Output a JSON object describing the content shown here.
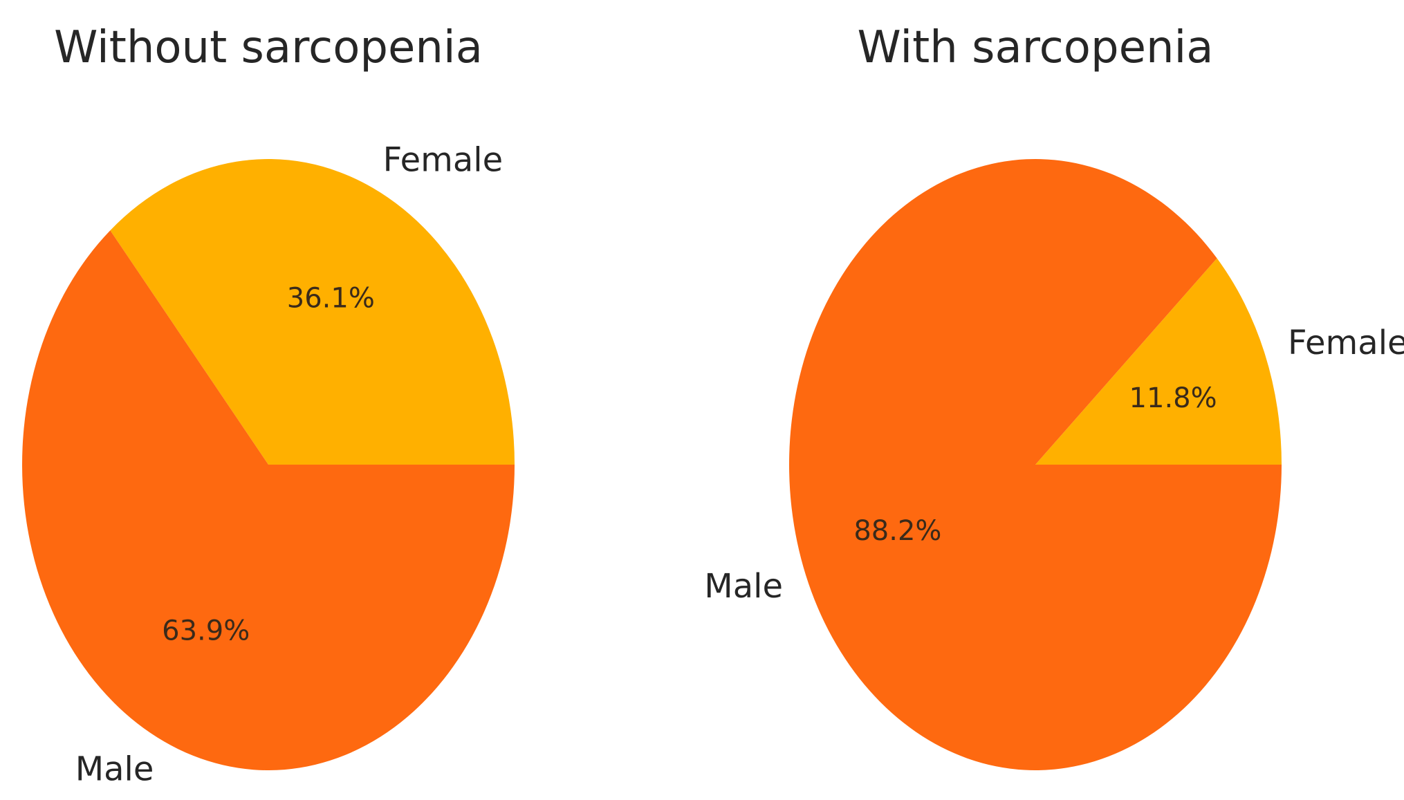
{
  "chart_data": [
    {
      "type": "pie",
      "title": "Without sarcopenia",
      "slices": [
        {
          "label": "Female",
          "value": 36.1,
          "pct_label": "36.1%",
          "color": "#FFB000"
        },
        {
          "label": "Male",
          "value": 63.9,
          "pct_label": "63.9%",
          "color": "#FE6910"
        }
      ]
    },
    {
      "type": "pie",
      "title": "With sarcopenia",
      "slices": [
        {
          "label": "Female",
          "value": 11.8,
          "pct_label": "11.8%",
          "color": "#FFB000"
        },
        {
          "label": "Male",
          "value": 88.2,
          "pct_label": "88.2%",
          "color": "#FE6910"
        }
      ]
    }
  ]
}
